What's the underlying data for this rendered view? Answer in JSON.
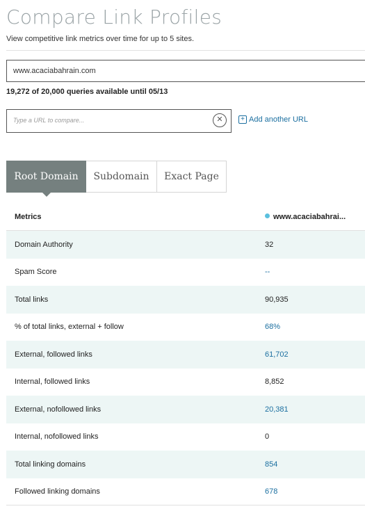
{
  "header": {
    "title": "Compare Link Profiles",
    "subtitle": "View competitive link metrics over time for up to 5 sites."
  },
  "primary_site": {
    "value": "www.acaciabahrain.com"
  },
  "quota": {
    "text": "19,272 of 20,000 queries available until 05/13"
  },
  "compare": {
    "placeholder": "Type a URL to compare...",
    "clear_icon": "close-circle-icon",
    "add_label": "Add another URL",
    "add_icon": "plus-square-icon"
  },
  "tabs": [
    {
      "label": "Root Domain",
      "active": true
    },
    {
      "label": "Subdomain",
      "active": false
    },
    {
      "label": "Exact Page",
      "active": false
    }
  ],
  "table": {
    "header": {
      "metric": "Metrics",
      "site": "www.acaciabahrai..."
    },
    "rows": [
      {
        "metric": "Domain Authority",
        "value": "32",
        "link": false
      },
      {
        "metric": "Spam Score",
        "value": "--",
        "link": true
      },
      {
        "metric": "Total links",
        "value": "90,935",
        "link": false
      },
      {
        "metric": "% of total links, external + follow",
        "value": "68%",
        "link": true
      },
      {
        "metric": "External, followed links",
        "value": "61,702",
        "link": true
      },
      {
        "metric": "Internal, followed links",
        "value": "8,852",
        "link": false
      },
      {
        "metric": "External, nofollowed links",
        "value": "20,381",
        "link": true
      },
      {
        "metric": "Internal, nofollowed links",
        "value": "0",
        "link": false
      },
      {
        "metric": "Total linking domains",
        "value": "854",
        "link": true
      },
      {
        "metric": "Followed linking domains",
        "value": "678",
        "link": true
      }
    ]
  },
  "colors": {
    "accent_link": "#1b6fa0",
    "active_tab": "#75807f",
    "alt_row": "#edf6f5",
    "site_dot": "#5bc0de"
  }
}
